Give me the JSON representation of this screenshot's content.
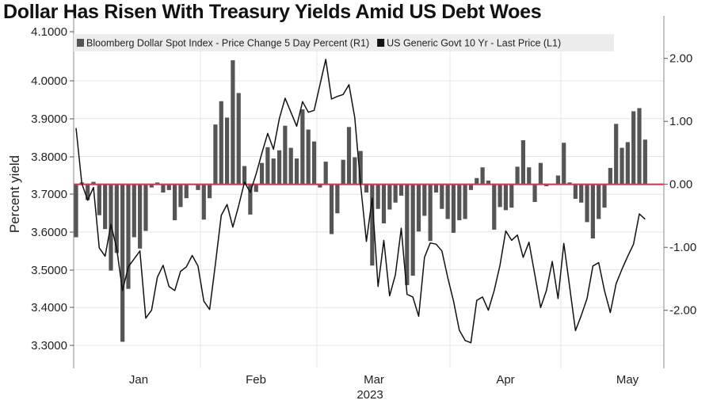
{
  "title": "Dollar Has Risen With Treasury Yields Amid US Debt Woes",
  "chart_data": {
    "type": "bar+line",
    "title": "Dollar Has Risen With Treasury Yields Amid US Debt Woes",
    "xlabel": "2023",
    "ylabel_left": "Percent yield",
    "ylabel_right": "",
    "x_tick_labels": [
      "Jan",
      "Feb",
      "Mar",
      "Apr",
      "May"
    ],
    "left_ticks": [
      "4.1000",
      "4.0000",
      "3.9000",
      "3.8000",
      "3.7000",
      "3.6000",
      "3.5000",
      "3.4000",
      "3.3000"
    ],
    "right_ticks": [
      "2.00",
      "1.00",
      "0.00",
      "-1.00",
      "-2.00"
    ],
    "ylim_left": [
      3.24,
      4.16
    ],
    "ylim_right": [
      -2.93,
      2.6
    ],
    "grid": true,
    "legend_position": "top",
    "reference_line": {
      "value": 0,
      "axis": "right",
      "color": "#e0334f"
    },
    "series": [
      {
        "name": "Bloomberg Dollar Spot Index - Price Change 5 Day Percent (R1)",
        "type": "bar",
        "axis": "right",
        "color": "#555555",
        "values": [
          -0.84,
          0.03,
          -0.25,
          0.04,
          -0.49,
          -0.71,
          -1.37,
          -1.09,
          -2.5,
          -1.66,
          -0.84,
          -1.02,
          -0.74,
          -0.05,
          0.03,
          -0.13,
          -0.09,
          -0.57,
          -0.36,
          -0.22,
          0,
          -0.09,
          -0.56,
          -0.22,
          0.95,
          1.32,
          1.06,
          1.97,
          1.45,
          0.29,
          -0.48,
          -0.12,
          0.34,
          0.59,
          0.41,
          0.54,
          0.93,
          0.58,
          0.41,
          1.19,
          0.87,
          0.68,
          -0.05,
          0.36,
          -0.79,
          -0.46,
          0.39,
          0.91,
          0.43,
          0.53,
          -0.13,
          -1.29,
          -0.39,
          -0.62,
          -0.4,
          -0.29,
          -0.18,
          -1.6,
          -1.45,
          -0.75,
          -0.5,
          -0.9,
          -0.13,
          -0.39,
          -0.55,
          -0.77,
          -0.57,
          -0.55,
          -0.09,
          0.1,
          0.27,
          0.06,
          -0.72,
          -0.36,
          -0.41,
          -0.37,
          0.28,
          0.7,
          0.27,
          -0.28,
          0.34,
          -0.03,
          0.01,
          0.14,
          0.66,
          0.03,
          -0.23,
          -0.29,
          -0.6,
          -0.86,
          -0.55,
          -0.37,
          0.26,
          0.96,
          0.58,
          0.67,
          1.16,
          1.21,
          0.71
        ]
      },
      {
        "name": "US Generic Govt 10 Yr - Last Price (L1)",
        "type": "line",
        "axis": "left",
        "color": "#111111",
        "values": [
          3.875,
          3.728,
          3.684,
          3.718,
          3.558,
          3.536,
          3.62,
          3.557,
          3.445,
          3.508,
          3.529,
          3.55,
          3.372,
          3.393,
          3.48,
          3.512,
          3.456,
          3.445,
          3.496,
          3.508,
          3.538,
          3.51,
          3.417,
          3.395,
          3.515,
          3.644,
          3.673,
          3.613,
          3.669,
          3.732,
          3.705,
          3.753,
          3.809,
          3.861,
          3.819,
          3.9,
          3.954,
          3.917,
          3.88,
          3.945,
          3.917,
          3.922,
          3.99,
          4.057,
          3.952,
          3.959,
          3.964,
          3.99,
          3.903,
          3.725,
          3.575,
          3.69,
          3.456,
          3.578,
          3.431,
          3.487,
          3.61,
          3.435,
          3.428,
          3.377,
          3.533,
          3.571,
          3.568,
          3.55,
          3.48,
          3.417,
          3.34,
          3.313,
          3.307,
          3.419,
          3.428,
          3.393,
          3.445,
          3.512,
          3.603,
          3.578,
          3.592,
          3.533,
          3.573,
          3.487,
          3.4,
          3.445,
          3.522,
          3.424,
          3.57,
          3.456,
          3.339,
          3.379,
          3.424,
          3.51,
          3.519,
          3.445,
          3.387,
          3.463,
          3.501,
          3.536,
          3.568,
          3.648,
          3.634
        ]
      }
    ]
  }
}
